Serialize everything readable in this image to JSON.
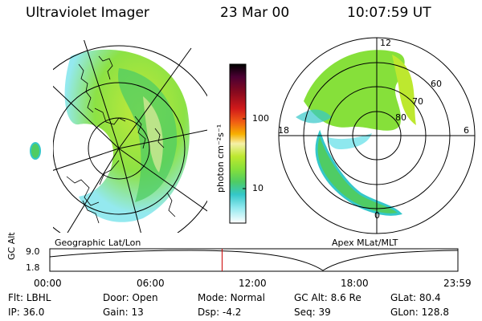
{
  "header": {
    "title": "Ultraviolet Imager",
    "date": "23 Mar 00",
    "time": "10:07:59 UT"
  },
  "left_panel": {
    "caption": "Geographic Lat/Lon"
  },
  "right_panel": {
    "caption": "Apex MLat/MLT",
    "mlt_labels": {
      "top": "12",
      "bottom": "0",
      "left": "18",
      "right": "6"
    },
    "lat_labels": [
      "60",
      "70",
      "80"
    ]
  },
  "colorbar": {
    "unit": "photon cm⁻²s⁻¹",
    "ticks": [
      "100",
      "10"
    ],
    "colors": [
      "#000000",
      "#4b0033",
      "#8a0a1e",
      "#d11a1a",
      "#f05a14",
      "#f7b000",
      "#f5f0a8",
      "#bde82f",
      "#86e03a",
      "#4fcc64",
      "#34c7c9",
      "#8ee8ee",
      "#ffffff"
    ]
  },
  "timeline": {
    "ylabel": "GC Alt",
    "yticks": [
      "9.0",
      "1.8"
    ],
    "xticks": [
      "00:00",
      "06:00",
      "12:00",
      "18:00",
      "23:59"
    ],
    "current_fraction": 0.4222
  },
  "status": {
    "row1": [
      {
        "label": "Flt:",
        "value": "LBHL"
      },
      {
        "label": "Door:",
        "value": "Open"
      },
      {
        "label": "Mode:",
        "value": "Normal"
      },
      {
        "label": "GC Alt:",
        "value": "8.6 Re"
      },
      {
        "label": "GLat:",
        "value": "80.4"
      }
    ],
    "row2": [
      {
        "label": "IP:",
        "value": "36.0"
      },
      {
        "label": "Gain:",
        "value": "13"
      },
      {
        "label": "Dsp:",
        "value": "-4.2"
      },
      {
        "label": "Seq:",
        "value": "39"
      },
      {
        "label": "GLon:",
        "value": "128.8"
      }
    ]
  }
}
